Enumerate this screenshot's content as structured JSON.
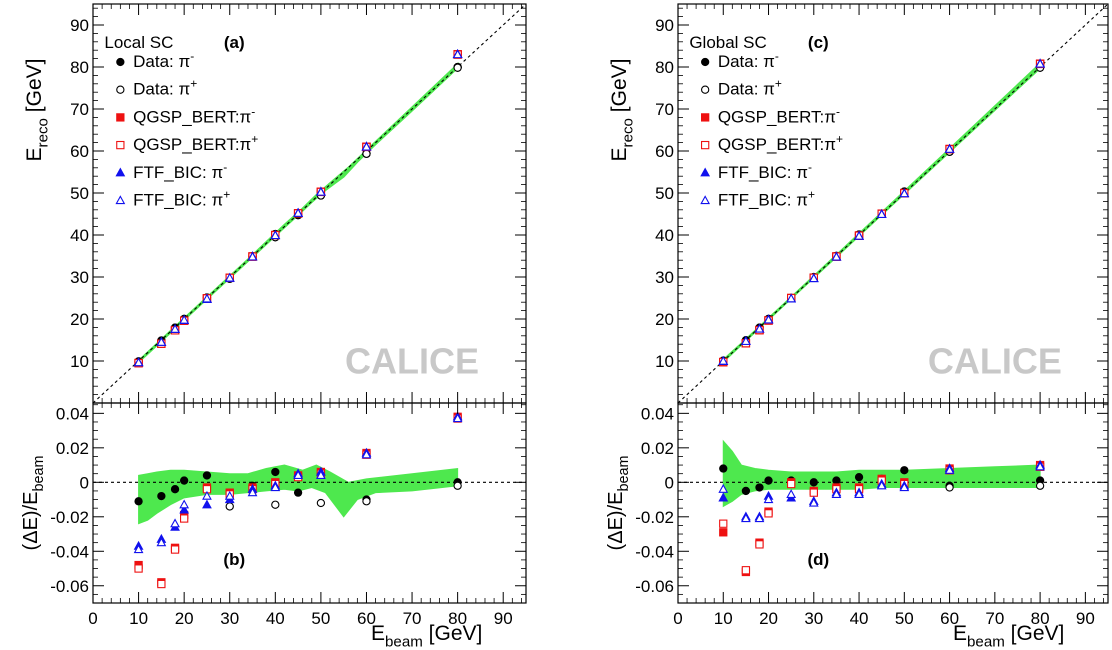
{
  "chart_data": [
    {
      "panel": "left",
      "type": "scatter",
      "top_label": "(a)",
      "bottom_label": "(b)",
      "legend_title": "Local SC",
      "watermark": "CALICE",
      "xlabel": "E",
      "xlabel_sub": "beam",
      "xlabel_unit": " [GeV]",
      "ylabel_top": "E",
      "ylabel_top_sub": "reco",
      "ylabel_top_unit": " [GeV]",
      "ylabel_bottom_pre": "(ΔE)/E",
      "ylabel_bottom_sub": "beam",
      "xlim": [
        0,
        95
      ],
      "xticks": [
        0,
        10,
        20,
        30,
        40,
        50,
        60,
        70,
        80,
        90
      ],
      "top_ylim": [
        0,
        95
      ],
      "top_yticks": [
        10,
        20,
        30,
        40,
        50,
        60,
        70,
        80,
        90
      ],
      "bottom_ylim": [
        -0.07,
        0.046
      ],
      "bottom_yticks": [
        -0.06,
        -0.04,
        -0.02,
        0,
        0.02,
        0.04
      ],
      "bottom_tick_labels": [
        "-0.06",
        "-0.04",
        "-0.02",
        "0",
        "0.02",
        "0.04"
      ],
      "legend": [
        {
          "label": "Data: π",
          "sup": "-",
          "marker": "circle-filled",
          "color": "#000000"
        },
        {
          "label": "Data: π",
          "sup": "+",
          "marker": "circle-open",
          "color": "#000000"
        },
        {
          "label": "QGSP_BERT:π",
          "sup": "-",
          "marker": "square-filled",
          "color": "#ee1111"
        },
        {
          "label": "QGSP_BERT:π",
          "sup": "+",
          "marker": "square-open",
          "color": "#ee1111"
        },
        {
          "label": "FTF_BIC: π",
          "sup": "-",
          "marker": "triangle-filled",
          "color": "#1111ee"
        },
        {
          "label": "FTF_BIC: π",
          "sup": "+",
          "marker": "triangle-open",
          "color": "#1111ee"
        }
      ],
      "band_upper": [
        [
          10,
          0.004
        ],
        [
          12,
          0.005
        ],
        [
          14,
          0.006
        ],
        [
          17,
          0.007
        ],
        [
          20,
          0.007
        ],
        [
          25,
          0.006
        ],
        [
          30,
          0.005
        ],
        [
          34,
          0.005
        ],
        [
          38,
          0.008
        ],
        [
          42,
          0.01
        ],
        [
          46,
          0.007
        ],
        [
          49,
          0.01
        ],
        [
          52,
          0.006
        ],
        [
          56,
          0.0
        ],
        [
          60,
          0.002
        ],
        [
          70,
          0.005
        ],
        [
          80,
          0.008
        ]
      ],
      "band_lower": [
        [
          10,
          -0.024
        ],
        [
          12,
          -0.022
        ],
        [
          14,
          -0.018
        ],
        [
          17,
          -0.013
        ],
        [
          20,
          -0.009
        ],
        [
          25,
          -0.007
        ],
        [
          30,
          -0.007
        ],
        [
          34,
          -0.006
        ],
        [
          38,
          -0.005
        ],
        [
          42,
          -0.004
        ],
        [
          45,
          -0.005
        ],
        [
          48,
          -0.003
        ],
        [
          51,
          -0.006
        ],
        [
          55,
          -0.02
        ],
        [
          58,
          -0.01
        ],
        [
          62,
          -0.006
        ],
        [
          70,
          -0.005
        ],
        [
          80,
          -0.002
        ]
      ],
      "series": [
        {
          "marker": "circle-filled",
          "color": "#000000",
          "x": [
            10,
            15,
            18,
            20,
            25,
            30,
            35,
            40,
            45,
            50,
            60,
            80
          ],
          "dev": [
            -0.011,
            -0.008,
            -0.004,
            0.001,
            0.004,
            -0.006,
            -0.002,
            0.006,
            -0.006,
            0.005,
            -0.01,
            0.0
          ]
        },
        {
          "marker": "circle-open",
          "color": "#000000",
          "x": [
            30,
            40,
            50,
            60,
            80
          ],
          "dev": [
            -0.014,
            -0.013,
            -0.012,
            -0.011,
            -0.002
          ]
        },
        {
          "marker": "square-filled",
          "color": "#ee1111",
          "x": [
            10,
            15,
            18,
            20,
            25,
            30,
            35,
            40,
            45,
            50,
            60,
            80
          ],
          "dev": [
            -0.048,
            -0.058,
            -0.038,
            -0.019,
            -0.003,
            -0.006,
            -0.003,
            0.0,
            0.004,
            0.006,
            0.017,
            0.038
          ]
        },
        {
          "marker": "square-open",
          "color": "#ee1111",
          "x": [
            10,
            15,
            18,
            20,
            25,
            30,
            35,
            40,
            45,
            50,
            60,
            80
          ],
          "dev": [
            -0.05,
            -0.059,
            -0.039,
            -0.021,
            -0.004,
            -0.007,
            -0.004,
            -0.001,
            0.003,
            0.005,
            0.016,
            0.037
          ]
        },
        {
          "marker": "triangle-filled",
          "color": "#1111ee",
          "x": [
            10,
            15,
            18,
            20,
            25,
            30,
            35,
            40,
            45,
            50,
            60,
            80
          ],
          "dev": [
            -0.037,
            -0.033,
            -0.026,
            -0.016,
            -0.013,
            -0.01,
            -0.004,
            -0.002,
            0.005,
            0.006,
            0.017,
            0.038
          ]
        },
        {
          "marker": "triangle-open",
          "color": "#1111ee",
          "x": [
            10,
            15,
            18,
            20,
            25,
            30,
            35,
            40,
            45,
            50,
            60,
            80
          ],
          "dev": [
            -0.039,
            -0.035,
            -0.024,
            -0.013,
            -0.008,
            -0.008,
            -0.006,
            -0.003,
            0.004,
            0.004,
            0.016,
            0.037
          ]
        }
      ]
    },
    {
      "panel": "right",
      "type": "scatter",
      "top_label": "(c)",
      "bottom_label": "(d)",
      "legend_title": "Global SC",
      "watermark": "CALICE",
      "xlabel": "E",
      "xlabel_sub": "beam",
      "xlabel_unit": " [GeV]",
      "ylabel_top": "E",
      "ylabel_top_sub": "reco",
      "ylabel_top_unit": " [GeV]",
      "ylabel_bottom_pre": "(ΔE)/E",
      "ylabel_bottom_sub": "beam",
      "xlim": [
        0,
        95
      ],
      "xticks": [
        0,
        10,
        20,
        30,
        40,
        50,
        60,
        70,
        80,
        90
      ],
      "top_ylim": [
        0,
        95
      ],
      "top_yticks": [
        10,
        20,
        30,
        40,
        50,
        60,
        70,
        80,
        90
      ],
      "bottom_ylim": [
        -0.07,
        0.046
      ],
      "bottom_yticks": [
        -0.06,
        -0.04,
        -0.02,
        0,
        0.02,
        0.04
      ],
      "bottom_tick_labels": [
        "-0.06",
        "-0.04",
        "-0.02",
        "0",
        "0.02",
        "0.04"
      ],
      "legend": [
        {
          "label": "Data: π",
          "sup": "-",
          "marker": "circle-filled",
          "color": "#000000"
        },
        {
          "label": "Data: π",
          "sup": "+",
          "marker": "circle-open",
          "color": "#000000"
        },
        {
          "label": "QGSP_BERT:π",
          "sup": "-",
          "marker": "square-filled",
          "color": "#ee1111"
        },
        {
          "label": "QGSP_BERT:π",
          "sup": "+",
          "marker": "square-open",
          "color": "#ee1111"
        },
        {
          "label": "FTF_BIC: π",
          "sup": "-",
          "marker": "triangle-filled",
          "color": "#1111ee"
        },
        {
          "label": "FTF_BIC: π",
          "sup": "+",
          "marker": "triangle-open",
          "color": "#1111ee"
        }
      ],
      "band_upper": [
        [
          10,
          0.024
        ],
        [
          12,
          0.018
        ],
        [
          14,
          0.01
        ],
        [
          17,
          0.008
        ],
        [
          20,
          0.007
        ],
        [
          25,
          0.006
        ],
        [
          30,
          0.006
        ],
        [
          35,
          0.006
        ],
        [
          40,
          0.007
        ],
        [
          45,
          0.007
        ],
        [
          50,
          0.007
        ],
        [
          60,
          0.008
        ],
        [
          70,
          0.009
        ],
        [
          80,
          0.01
        ]
      ],
      "band_lower": [
        [
          10,
          -0.014
        ],
        [
          12,
          -0.011
        ],
        [
          14,
          -0.007
        ],
        [
          17,
          -0.005
        ],
        [
          20,
          -0.004
        ],
        [
          25,
          -0.004
        ],
        [
          30,
          -0.004
        ],
        [
          35,
          -0.004
        ],
        [
          40,
          -0.004
        ],
        [
          45,
          -0.003
        ],
        [
          50,
          -0.003
        ],
        [
          60,
          -0.003
        ],
        [
          70,
          -0.003
        ],
        [
          80,
          -0.003
        ]
      ],
      "series": [
        {
          "marker": "circle-filled",
          "color": "#000000",
          "x": [
            10,
            15,
            18,
            20,
            25,
            30,
            35,
            40,
            45,
            50,
            60,
            80
          ],
          "dev": [
            0.008,
            -0.005,
            -0.003,
            0.001,
            0.001,
            0.0,
            0.001,
            0.003,
            0.002,
            0.007,
            -0.002,
            0.001
          ]
        },
        {
          "marker": "circle-open",
          "color": "#000000",
          "x": [
            60,
            80
          ],
          "dev": [
            -0.003,
            -0.002
          ]
        },
        {
          "marker": "square-filled",
          "color": "#ee1111",
          "x": [
            10,
            15,
            18,
            20,
            25,
            30,
            35,
            40,
            45,
            50,
            60,
            80
          ],
          "dev": [
            -0.029,
            -0.052,
            -0.035,
            -0.017,
            0.0,
            -0.005,
            -0.003,
            -0.003,
            0.002,
            0.0,
            0.008,
            0.01
          ]
        },
        {
          "marker": "square-open",
          "color": "#ee1111",
          "x": [
            10,
            15,
            18,
            20,
            25,
            30,
            35,
            40,
            45,
            50,
            60,
            80
          ],
          "dev": [
            -0.024,
            -0.051,
            -0.036,
            -0.018,
            -0.001,
            -0.006,
            -0.004,
            -0.004,
            0.001,
            -0.001,
            0.007,
            0.009
          ]
        },
        {
          "marker": "triangle-filled",
          "color": "#1111ee",
          "x": [
            10,
            15,
            18,
            20,
            25,
            30,
            35,
            40,
            45,
            50,
            60,
            80
          ],
          "dev": [
            -0.009,
            -0.02,
            -0.02,
            -0.008,
            -0.009,
            -0.011,
            -0.006,
            -0.006,
            -0.001,
            -0.002,
            0.008,
            0.01
          ]
        },
        {
          "marker": "triangle-open",
          "color": "#1111ee",
          "x": [
            10,
            15,
            18,
            20,
            25,
            30,
            35,
            40,
            45,
            50,
            60,
            80
          ],
          "dev": [
            -0.004,
            -0.021,
            -0.021,
            -0.01,
            -0.007,
            -0.012,
            -0.007,
            -0.007,
            -0.002,
            -0.003,
            0.007,
            0.009
          ]
        }
      ]
    }
  ]
}
